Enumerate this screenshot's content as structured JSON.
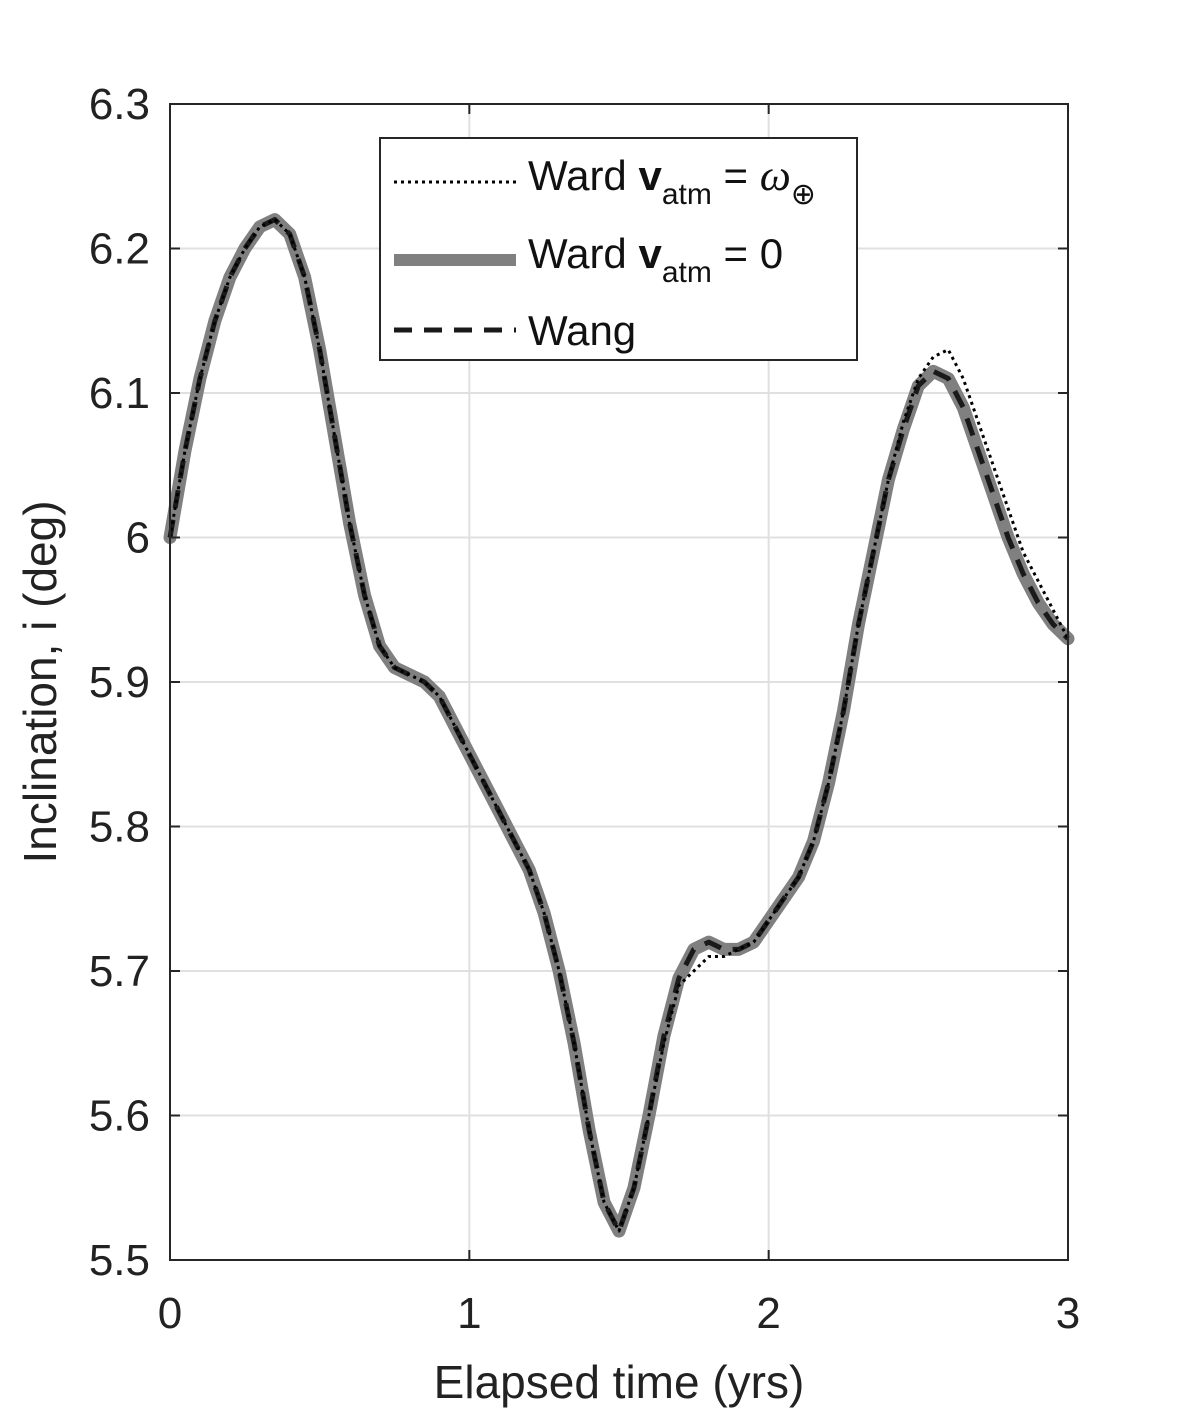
{
  "chart_data": {
    "type": "line",
    "title": "",
    "xlabel": "Elapsed time (yrs)",
    "ylabel": "Inclination, i (deg)",
    "xlim": [
      0,
      3
    ],
    "ylim": [
      5.5,
      6.3
    ],
    "xticks": [
      "0",
      "1",
      "2",
      "3"
    ],
    "yticks": [
      "5.5",
      "5.6",
      "5.7",
      "5.8",
      "5.9",
      "6",
      "6.1",
      "6.2",
      "6.3"
    ],
    "grid": true,
    "legend_position": "top-center",
    "legend": {
      "entries": [
        {
          "prefix": "Ward ",
          "bold": "v",
          "sub": "atm",
          "rel": " = ",
          "ital": "ω",
          "sub2": "⊕"
        },
        {
          "prefix": "Ward ",
          "bold": "v",
          "sub": "atm",
          "rel": " = 0"
        },
        {
          "prefix": "Wang"
        }
      ]
    },
    "series": [
      {
        "name": "Ward v_atm = ω⊕",
        "color": "#000000",
        "style": "dotted",
        "x": [
          0,
          0.05,
          0.1,
          0.15,
          0.2,
          0.25,
          0.3,
          0.35,
          0.4,
          0.45,
          0.5,
          0.55,
          0.6,
          0.65,
          0.7,
          0.75,
          0.8,
          0.85,
          0.9,
          0.95,
          1.0,
          1.05,
          1.1,
          1.15,
          1.2,
          1.25,
          1.3,
          1.35,
          1.4,
          1.45,
          1.5,
          1.55,
          1.6,
          1.65,
          1.7,
          1.75,
          1.8,
          1.85,
          1.9,
          1.95,
          2.0,
          2.05,
          2.1,
          2.15,
          2.2,
          2.25,
          2.3,
          2.35,
          2.4,
          2.45,
          2.5,
          2.55,
          2.6,
          2.65,
          2.7,
          2.75,
          2.8,
          2.85,
          2.9,
          2.95,
          3.0
        ],
        "y": [
          6.0,
          6.06,
          6.11,
          6.15,
          6.18,
          6.2,
          6.215,
          6.22,
          6.21,
          6.18,
          6.13,
          6.07,
          6.01,
          5.96,
          5.925,
          5.91,
          5.905,
          5.9,
          5.89,
          5.87,
          5.85,
          5.83,
          5.81,
          5.79,
          5.77,
          5.74,
          5.7,
          5.65,
          5.59,
          5.54,
          5.52,
          5.55,
          5.6,
          5.65,
          5.69,
          5.7,
          5.71,
          5.71,
          5.715,
          5.72,
          5.735,
          5.75,
          5.765,
          5.79,
          5.83,
          5.88,
          5.94,
          5.99,
          6.04,
          6.08,
          6.11,
          6.125,
          6.13,
          6.11,
          6.08,
          6.05,
          6.02,
          5.99,
          5.97,
          5.95,
          5.93
        ]
      },
      {
        "name": "Ward v_atm = 0",
        "color": "#808080",
        "style": "solid",
        "x": [
          0,
          0.05,
          0.1,
          0.15,
          0.2,
          0.25,
          0.3,
          0.35,
          0.4,
          0.45,
          0.5,
          0.55,
          0.6,
          0.65,
          0.7,
          0.75,
          0.8,
          0.85,
          0.9,
          0.95,
          1.0,
          1.05,
          1.1,
          1.15,
          1.2,
          1.25,
          1.3,
          1.35,
          1.4,
          1.45,
          1.5,
          1.55,
          1.6,
          1.65,
          1.7,
          1.75,
          1.8,
          1.85,
          1.9,
          1.95,
          2.0,
          2.05,
          2.1,
          2.15,
          2.2,
          2.25,
          2.3,
          2.35,
          2.4,
          2.45,
          2.5,
          2.55,
          2.6,
          2.65,
          2.7,
          2.75,
          2.8,
          2.85,
          2.9,
          2.95,
          3.0
        ],
        "y": [
          6.0,
          6.06,
          6.11,
          6.15,
          6.18,
          6.2,
          6.215,
          6.22,
          6.21,
          6.18,
          6.13,
          6.07,
          6.01,
          5.96,
          5.925,
          5.91,
          5.905,
          5.9,
          5.89,
          5.87,
          5.85,
          5.83,
          5.81,
          5.79,
          5.77,
          5.74,
          5.7,
          5.65,
          5.59,
          5.54,
          5.52,
          5.55,
          5.6,
          5.655,
          5.695,
          5.715,
          5.72,
          5.715,
          5.715,
          5.72,
          5.735,
          5.75,
          5.765,
          5.79,
          5.83,
          5.88,
          5.94,
          5.99,
          6.04,
          6.075,
          6.105,
          6.115,
          6.11,
          6.09,
          6.06,
          6.03,
          6.0,
          5.975,
          5.955,
          5.94,
          5.93
        ]
      },
      {
        "name": "Wang",
        "color": "#1a1a1a",
        "style": "dashed",
        "x": [
          0,
          0.05,
          0.1,
          0.15,
          0.2,
          0.25,
          0.3,
          0.35,
          0.4,
          0.45,
          0.5,
          0.55,
          0.6,
          0.65,
          0.7,
          0.75,
          0.8,
          0.85,
          0.9,
          0.95,
          1.0,
          1.05,
          1.1,
          1.15,
          1.2,
          1.25,
          1.3,
          1.35,
          1.4,
          1.45,
          1.5,
          1.55,
          1.6,
          1.65,
          1.7,
          1.75,
          1.8,
          1.85,
          1.9,
          1.95,
          2.0,
          2.05,
          2.1,
          2.15,
          2.2,
          2.25,
          2.3,
          2.35,
          2.4,
          2.45,
          2.5,
          2.55,
          2.6,
          2.65,
          2.7,
          2.75,
          2.8,
          2.85,
          2.9,
          2.95,
          3.0
        ],
        "y": [
          6.0,
          6.06,
          6.11,
          6.15,
          6.18,
          6.2,
          6.215,
          6.22,
          6.21,
          6.18,
          6.13,
          6.07,
          6.01,
          5.96,
          5.925,
          5.91,
          5.905,
          5.9,
          5.89,
          5.87,
          5.85,
          5.83,
          5.81,
          5.79,
          5.77,
          5.74,
          5.7,
          5.65,
          5.59,
          5.54,
          5.52,
          5.55,
          5.6,
          5.655,
          5.695,
          5.715,
          5.72,
          5.715,
          5.715,
          5.72,
          5.735,
          5.75,
          5.765,
          5.79,
          5.83,
          5.88,
          5.94,
          5.99,
          6.04,
          6.075,
          6.105,
          6.115,
          6.11,
          6.09,
          6.06,
          6.03,
          6.0,
          5.975,
          5.955,
          5.94,
          5.93
        ]
      }
    ]
  }
}
